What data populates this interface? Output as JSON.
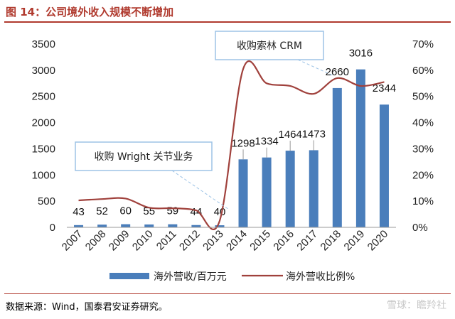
{
  "figure_title": "图 14：公司境外收入规模不断增加",
  "source": "数据来源：Wind，国泰君安证券研究。",
  "watermark": "雪球：瞻羚社",
  "colors": {
    "bar": "#4a7ebb",
    "line": "#a0413c",
    "title": "#b03a2e",
    "callout_border": "#9dc3e6"
  },
  "chart_data": {
    "type": "bar+line",
    "categories": [
      "2007",
      "2008",
      "2009",
      "2010",
      "2011",
      "2012",
      "2013",
      "2014",
      "2015",
      "2016",
      "2017",
      "2018",
      "2019",
      "2020"
    ],
    "series": [
      {
        "name": "海外营收/百万元",
        "type": "bar",
        "axis": "left",
        "values": [
          43,
          52,
          60,
          55,
          59,
          44,
          40,
          1298,
          1334,
          1464,
          1473,
          2660,
          3016,
          2344
        ],
        "labels": [
          "43",
          "52",
          "60",
          "55",
          "59",
          "44",
          "40",
          "1298",
          "1334",
          "1464",
          "1473",
          "2660",
          "3016",
          "2344"
        ]
      },
      {
        "name": "海外营收比例%",
        "type": "line",
        "axis": "right",
        "values": [
          10.3,
          10.8,
          11.0,
          7.5,
          7.3,
          6.5,
          2.5,
          60.5,
          55.0,
          54.0,
          51.0,
          57.0,
          54.0,
          55.5
        ]
      }
    ],
    "y_left": {
      "ylim": [
        0,
        3500
      ],
      "ticks": [
        0,
        500,
        1000,
        1500,
        2000,
        2500,
        3000,
        3500
      ],
      "tick_labels": [
        "0",
        "500",
        "1000",
        "1500",
        "2000",
        "2500",
        "3000",
        "3500"
      ]
    },
    "y_right": {
      "ylim": [
        0,
        70
      ],
      "ticks": [
        0,
        10,
        20,
        30,
        40,
        50,
        60,
        70
      ],
      "tick_labels": [
        "0%",
        "10%",
        "20%",
        "30%",
        "40%",
        "50%",
        "60%",
        "70%"
      ]
    },
    "annotations": [
      {
        "text": "收购 Wright 关节业务",
        "points_to": "2013"
      },
      {
        "text": "收购索林 CRM",
        "points_to": "2018"
      }
    ],
    "legend": [
      "海外营收/百万元",
      "海外营收比例%"
    ],
    "legend_position": "bottom"
  }
}
